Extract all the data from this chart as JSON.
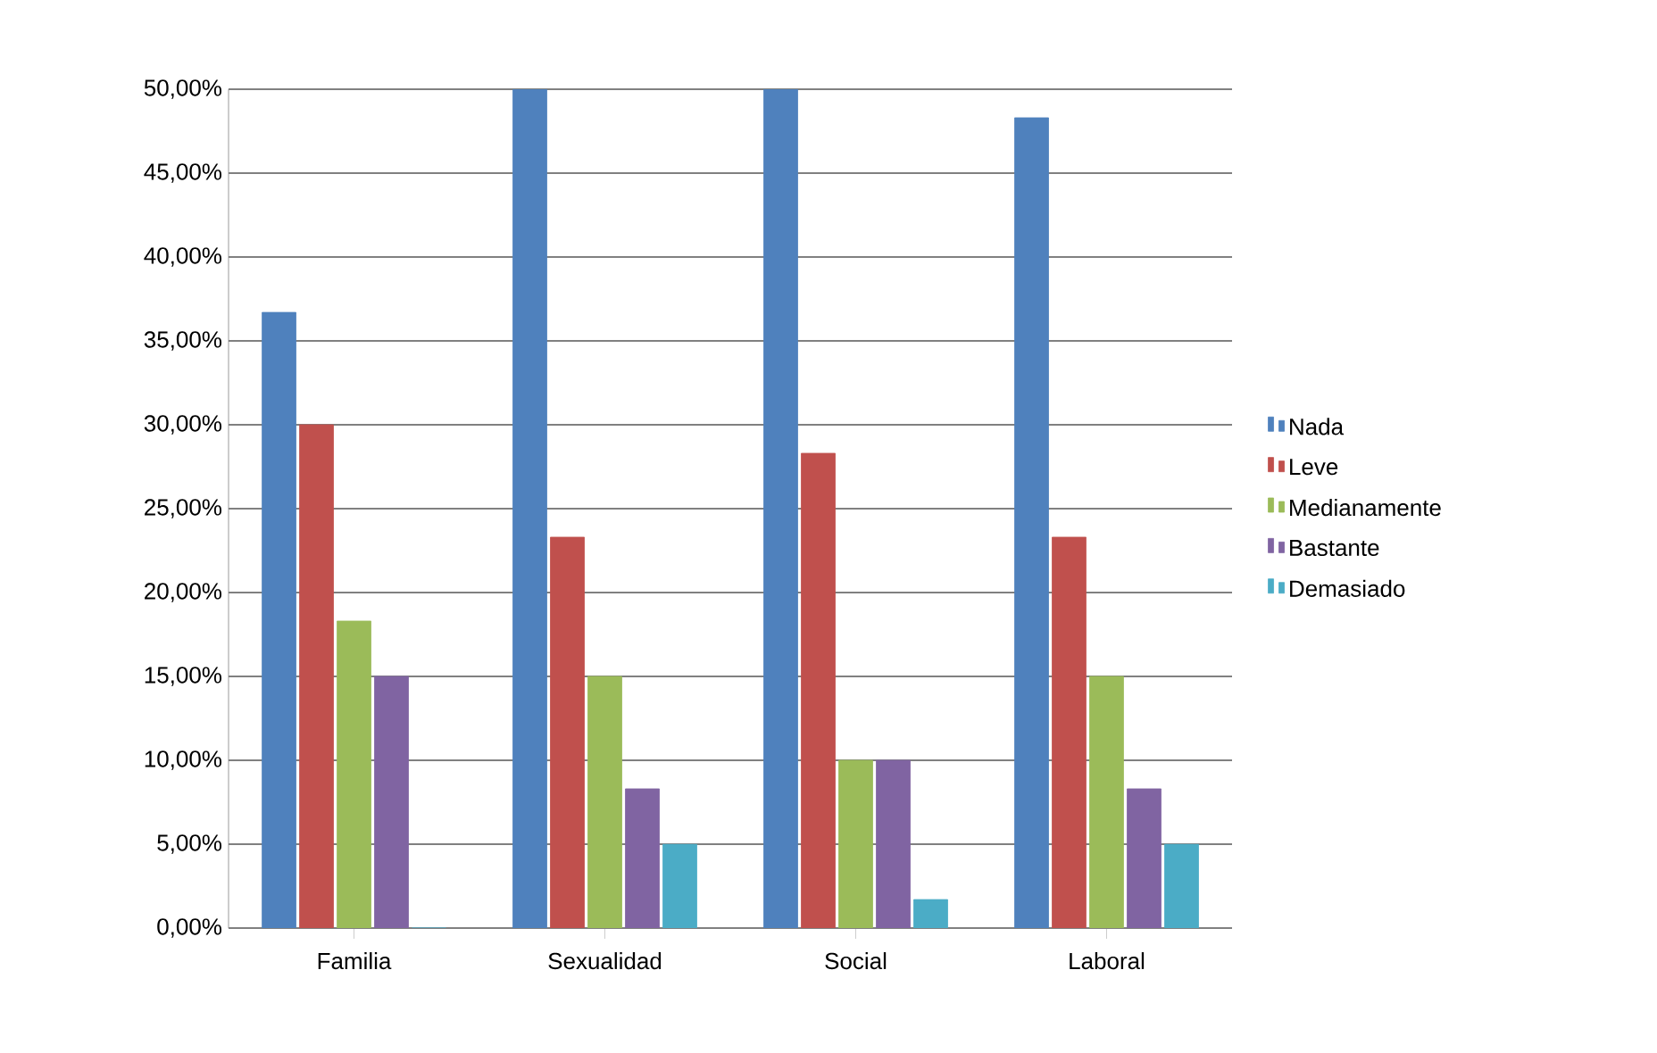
{
  "chart_data": {
    "type": "bar",
    "categories": [
      "Familia",
      "Sexualidad",
      "Social",
      "Laboral"
    ],
    "series": [
      {
        "name": "Nada",
        "color": "#4f81bd",
        "values": [
          36.7,
          50,
          50,
          48.3
        ]
      },
      {
        "name": "Leve",
        "color": "#c0504d",
        "values": [
          30,
          23.3,
          28.3,
          23.3
        ]
      },
      {
        "name": "Medianamente",
        "color": "#9bbb59",
        "values": [
          18.3,
          15,
          10,
          15
        ]
      },
      {
        "name": "Bastante",
        "color": "#8064a2",
        "values": [
          15,
          8.3,
          10,
          8.3
        ]
      },
      {
        "name": "Demasiado",
        "color": "#4bacc6",
        "values": [
          0,
          5,
          1.7,
          5
        ]
      }
    ],
    "ylim": [
      0,
      50
    ],
    "yticks": [
      {
        "value": 0,
        "label": "0,00%"
      },
      {
        "value": 5,
        "label": "5,00%"
      },
      {
        "value": 10,
        "label": "10,00%"
      },
      {
        "value": 15,
        "label": "15,00%"
      },
      {
        "value": 20,
        "label": "20,00%"
      },
      {
        "value": 25,
        "label": "25,00%"
      },
      {
        "value": 30,
        "label": "30,00%"
      },
      {
        "value": 35,
        "label": "35,00%"
      },
      {
        "value": 40,
        "label": "40,00%"
      },
      {
        "value": 45,
        "label": "45,00%"
      },
      {
        "value": 50,
        "label": "50,00%"
      }
    ],
    "grid": "y",
    "legend": "right"
  }
}
